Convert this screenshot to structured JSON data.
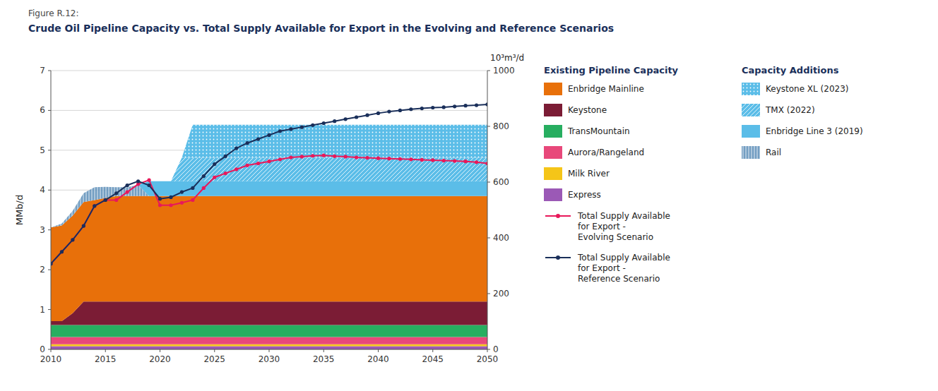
{
  "chart_data": {
    "type": "area",
    "stacked": true,
    "figure_label": "Figure R.12:",
    "title": "Crude Oil Pipeline Capacity vs. Total Supply Available for Export in the Evolving and Reference Scenarios",
    "ylabel": "MMb/d",
    "y2label": "10³m³/d",
    "x": [
      2010,
      2011,
      2012,
      2013,
      2014,
      2015,
      2016,
      2017,
      2018,
      2019,
      2020,
      2021,
      2022,
      2023,
      2024,
      2025,
      2026,
      2027,
      2028,
      2029,
      2030,
      2031,
      2032,
      2033,
      2034,
      2035,
      2036,
      2037,
      2038,
      2039,
      2040,
      2041,
      2042,
      2043,
      2044,
      2045,
      2046,
      2047,
      2048,
      2049,
      2050
    ],
    "xlim": [
      2010,
      2050
    ],
    "xticks": [
      2010,
      2015,
      2020,
      2025,
      2030,
      2035,
      2040,
      2045,
      2050
    ],
    "ylim": [
      0,
      7
    ],
    "yticks": [
      0,
      1,
      2,
      3,
      4,
      5,
      6,
      7
    ],
    "y2lim": [
      0,
      1000
    ],
    "y2ticks": [
      0,
      200,
      400,
      600,
      800,
      1000
    ],
    "grid": true,
    "legend": "right",
    "series": [
      {
        "name": "Express",
        "type": "area",
        "group": "Existing Pipeline Capacity",
        "color": "#9B59B6",
        "values": [
          0.08,
          0.08,
          0.08,
          0.08,
          0.08,
          0.08,
          0.08,
          0.08,
          0.08,
          0.08,
          0.08,
          0.08,
          0.08,
          0.08,
          0.08,
          0.08,
          0.08,
          0.08,
          0.08,
          0.08,
          0.08,
          0.08,
          0.08,
          0.08,
          0.08,
          0.08,
          0.08,
          0.08,
          0.08,
          0.08,
          0.08,
          0.08,
          0.08,
          0.08,
          0.08,
          0.08,
          0.08,
          0.08,
          0.08,
          0.08,
          0.08
        ]
      },
      {
        "name": "Milk River",
        "type": "area",
        "group": "Existing Pipeline Capacity",
        "color": "#F5C518",
        "values": [
          0.05,
          0.05,
          0.05,
          0.05,
          0.05,
          0.05,
          0.05,
          0.05,
          0.05,
          0.05,
          0.05,
          0.05,
          0.05,
          0.05,
          0.05,
          0.05,
          0.05,
          0.05,
          0.05,
          0.05,
          0.05,
          0.05,
          0.05,
          0.05,
          0.05,
          0.05,
          0.05,
          0.05,
          0.05,
          0.05,
          0.05,
          0.05,
          0.05,
          0.05,
          0.05,
          0.05,
          0.05,
          0.05,
          0.05,
          0.05,
          0.05
        ]
      },
      {
        "name": "Aurora/Rangeland",
        "type": "area",
        "group": "Existing Pipeline Capacity",
        "color": "#E8487A",
        "values": [
          0.18,
          0.18,
          0.18,
          0.18,
          0.18,
          0.18,
          0.18,
          0.18,
          0.18,
          0.18,
          0.18,
          0.18,
          0.18,
          0.18,
          0.18,
          0.18,
          0.18,
          0.18,
          0.18,
          0.18,
          0.18,
          0.18,
          0.18,
          0.18,
          0.18,
          0.18,
          0.18,
          0.18,
          0.18,
          0.18,
          0.18,
          0.18,
          0.18,
          0.18,
          0.18,
          0.18,
          0.18,
          0.18,
          0.18,
          0.18,
          0.18
        ]
      },
      {
        "name": "TransMountain",
        "type": "area",
        "group": "Existing Pipeline Capacity",
        "color": "#27AE60",
        "values": [
          0.3,
          0.3,
          0.3,
          0.3,
          0.3,
          0.3,
          0.3,
          0.3,
          0.3,
          0.3,
          0.3,
          0.3,
          0.3,
          0.3,
          0.3,
          0.3,
          0.3,
          0.3,
          0.3,
          0.3,
          0.3,
          0.3,
          0.3,
          0.3,
          0.3,
          0.3,
          0.3,
          0.3,
          0.3,
          0.3,
          0.3,
          0.3,
          0.3,
          0.3,
          0.3,
          0.3,
          0.3,
          0.3,
          0.3,
          0.3,
          0.3
        ]
      },
      {
        "name": "Keystone",
        "type": "area",
        "group": "Existing Pipeline Capacity",
        "color": "#7B1C35",
        "values": [
          0.1,
          0.1,
          0.3,
          0.59,
          0.59,
          0.59,
          0.59,
          0.59,
          0.59,
          0.59,
          0.59,
          0.59,
          0.59,
          0.59,
          0.59,
          0.59,
          0.59,
          0.59,
          0.59,
          0.59,
          0.59,
          0.59,
          0.59,
          0.59,
          0.59,
          0.59,
          0.59,
          0.59,
          0.59,
          0.59,
          0.59,
          0.59,
          0.59,
          0.59,
          0.59,
          0.59,
          0.59,
          0.59,
          0.59,
          0.59,
          0.59
        ]
      },
      {
        "name": "Enbridge Mainline",
        "type": "area",
        "group": "Existing Pipeline Capacity",
        "color": "#E8700A",
        "values": [
          2.35,
          2.4,
          2.45,
          2.5,
          2.55,
          2.6,
          2.65,
          2.65,
          2.65,
          2.65,
          2.65,
          2.65,
          2.65,
          2.65,
          2.65,
          2.65,
          2.65,
          2.65,
          2.65,
          2.65,
          2.65,
          2.65,
          2.65,
          2.65,
          2.65,
          2.65,
          2.65,
          2.65,
          2.65,
          2.65,
          2.65,
          2.65,
          2.65,
          2.65,
          2.65,
          2.65,
          2.65,
          2.65,
          2.65,
          2.65,
          2.65
        ]
      },
      {
        "name": "Rail",
        "type": "area",
        "group": "Capacity Additions",
        "color": "#5B8DB8",
        "values": [
          0.0,
          0.05,
          0.12,
          0.22,
          0.32,
          0.28,
          0.22,
          0.22,
          0.28,
          0.0,
          0.0,
          0.0,
          0.0,
          0.0,
          0.0,
          0.0,
          0.0,
          0.0,
          0.0,
          0.0,
          0.0,
          0.0,
          0.0,
          0.0,
          0.0,
          0.0,
          0.0,
          0.0,
          0.0,
          0.0,
          0.0,
          0.0,
          0.0,
          0.0,
          0.0,
          0.0,
          0.0,
          0.0,
          0.0,
          0.0,
          0.0
        ]
      },
      {
        "name": "Enbridge Line 3 (2019)",
        "type": "area",
        "group": "Capacity Additions",
        "color": "#5BBDE8",
        "values": [
          0.0,
          0.0,
          0.0,
          0.0,
          0.0,
          0.0,
          0.0,
          0.0,
          0.0,
          0.37,
          0.37,
          0.37,
          0.37,
          0.37,
          0.37,
          0.37,
          0.37,
          0.37,
          0.37,
          0.37,
          0.37,
          0.37,
          0.37,
          0.37,
          0.37,
          0.37,
          0.37,
          0.37,
          0.37,
          0.37,
          0.37,
          0.37,
          0.37,
          0.37,
          0.37,
          0.37,
          0.37,
          0.37,
          0.37,
          0.37,
          0.37
        ]
      },
      {
        "name": "TMX (2022)",
        "type": "area",
        "group": "Capacity Additions",
        "color": "#5BBDE8",
        "values": [
          0.0,
          0.0,
          0.0,
          0.0,
          0.0,
          0.0,
          0.0,
          0.0,
          0.0,
          0.0,
          0.0,
          0.0,
          0.59,
          0.59,
          0.59,
          0.59,
          0.59,
          0.59,
          0.59,
          0.59,
          0.59,
          0.59,
          0.59,
          0.59,
          0.59,
          0.59,
          0.59,
          0.59,
          0.59,
          0.59,
          0.59,
          0.59,
          0.59,
          0.59,
          0.59,
          0.59,
          0.59,
          0.59,
          0.59,
          0.59,
          0.59
        ]
      },
      {
        "name": "Keystone XL (2023)",
        "type": "area",
        "group": "Capacity Additions",
        "color": "#5BBDE8",
        "values": [
          0.0,
          0.0,
          0.0,
          0.0,
          0.0,
          0.0,
          0.0,
          0.0,
          0.0,
          0.0,
          0.0,
          0.0,
          0.0,
          0.83,
          0.83,
          0.83,
          0.83,
          0.83,
          0.83,
          0.83,
          0.83,
          0.83,
          0.83,
          0.83,
          0.83,
          0.83,
          0.83,
          0.83,
          0.83,
          0.83,
          0.83,
          0.83,
          0.83,
          0.83,
          0.83,
          0.83,
          0.83,
          0.83,
          0.83,
          0.83,
          0.83
        ]
      },
      {
        "name": "Total Supply Available\nfor Export -\nEvolving Scenario",
        "type": "line",
        "marker": "circle",
        "color": "#E8185A",
        "values": [
          2.15,
          2.45,
          2.75,
          3.1,
          3.6,
          3.75,
          3.75,
          3.95,
          4.15,
          4.25,
          3.62,
          3.62,
          3.68,
          3.75,
          4.05,
          4.32,
          4.42,
          4.52,
          4.62,
          4.67,
          4.72,
          4.77,
          4.82,
          4.84,
          4.86,
          4.87,
          4.85,
          4.84,
          4.82,
          4.81,
          4.8,
          4.79,
          4.78,
          4.77,
          4.76,
          4.75,
          4.74,
          4.73,
          4.72,
          4.7,
          4.67
        ]
      },
      {
        "name": "Total Supply Available\nfor Export -\nReference Scenario",
        "type": "line",
        "marker": "circle",
        "color": "#1A2F5A",
        "values": [
          2.15,
          2.45,
          2.75,
          3.1,
          3.6,
          3.75,
          3.92,
          4.12,
          4.22,
          4.12,
          3.78,
          3.82,
          3.95,
          4.05,
          4.35,
          4.65,
          4.85,
          5.05,
          5.18,
          5.28,
          5.38,
          5.48,
          5.53,
          5.58,
          5.63,
          5.68,
          5.73,
          5.78,
          5.83,
          5.88,
          5.93,
          5.97,
          6.0,
          6.03,
          6.05,
          6.07,
          6.08,
          6.1,
          6.12,
          6.13,
          6.15
        ]
      }
    ]
  }
}
